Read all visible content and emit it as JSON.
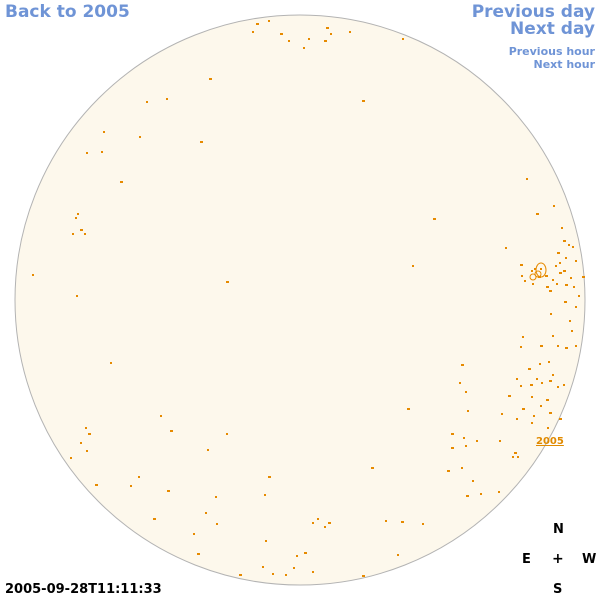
{
  "nav": {
    "back_label": "Back to 2005",
    "prev_day_label": "Previous day",
    "next_day_label": "Next day",
    "prev_hour_label": "Previous hour",
    "next_hour_label": "Next hour"
  },
  "compass": {
    "north": "N",
    "east": "E",
    "center": "+",
    "west": "W",
    "south": "S"
  },
  "timestamp": "2005-09-28T11:11:33",
  "region_label": "2005",
  "colors": {
    "disk_fill": "#fdf8ec",
    "disk_stroke": "#b3b3b3",
    "marker": "#e68a00",
    "link": "#6f94d6"
  }
}
